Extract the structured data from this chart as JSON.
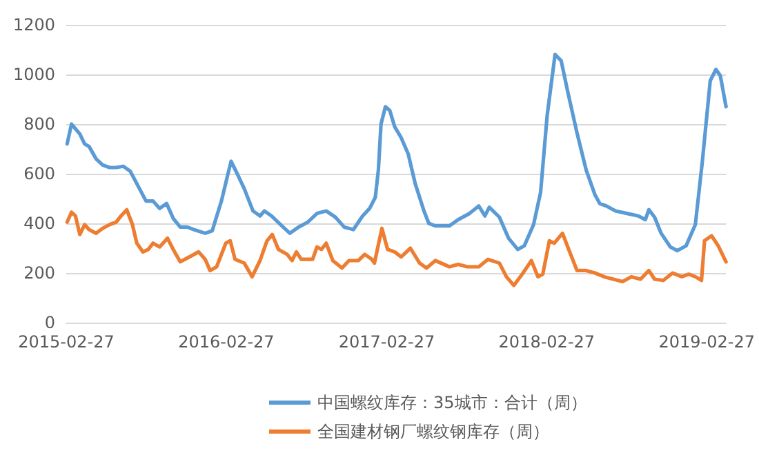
{
  "chart_data": {
    "type": "line",
    "xlim": [
      "2015-02-27",
      "2019-04-12"
    ],
    "xticks": [
      "2015-02-27",
      "2016-02-27",
      "2017-02-27",
      "2018-02-27",
      "2019-02-27"
    ],
    "ylim": [
      0,
      1200
    ],
    "yticks": [
      0,
      200,
      400,
      600,
      800,
      1000,
      1200
    ],
    "grid": "y",
    "legend": "bottom",
    "marker": "none",
    "line_style": "solid",
    "series": [
      {
        "name": "中国螺纹库存：35城市：合计（周）",
        "color": "#5b9bd5",
        "x": [
          "2015-03-01",
          "2015-03-11",
          "2015-03-30",
          "2015-04-10",
          "2015-04-20",
          "2015-05-06",
          "2015-05-21",
          "2015-06-06",
          "2015-06-21",
          "2015-07-07",
          "2015-07-23",
          "2015-08-07",
          "2015-08-28",
          "2015-09-13",
          "2015-09-28",
          "2015-10-14",
          "2015-10-29",
          "2015-11-14",
          "2015-11-30",
          "2015-12-15",
          "2016-01-10",
          "2016-01-26",
          "2016-02-16",
          "2016-03-02",
          "2016-03-09",
          "2016-03-23",
          "2016-04-08",
          "2016-04-28",
          "2016-05-14",
          "2016-05-24",
          "2016-06-09",
          "2016-06-30",
          "2016-07-21",
          "2016-08-10",
          "2016-08-31",
          "2016-09-21",
          "2016-10-12",
          "2016-11-02",
          "2016-11-22",
          "2016-12-13",
          "2017-01-03",
          "2017-01-19",
          "2017-02-01",
          "2017-02-08",
          "2017-02-14",
          "2017-02-24",
          "2017-03-06",
          "2017-03-17",
          "2017-04-01",
          "2017-04-17",
          "2017-05-03",
          "2017-05-23",
          "2017-06-03",
          "2017-06-18",
          "2017-07-20",
          "2017-08-09",
          "2017-09-04",
          "2017-09-25",
          "2017-10-09",
          "2017-10-19",
          "2017-11-11",
          "2017-12-02",
          "2017-12-23",
          "2018-01-07",
          "2018-01-28",
          "2018-02-13",
          "2018-02-28",
          "2018-03-18",
          "2018-04-01",
          "2018-04-16",
          "2018-05-07",
          "2018-05-28",
          "2018-06-17",
          "2018-06-28",
          "2018-07-13",
          "2018-08-03",
          "2018-08-29",
          "2018-09-24",
          "2018-10-10",
          "2018-10-18",
          "2018-10-31",
          "2018-11-15",
          "2018-12-06",
          "2018-12-22",
          "2019-01-11",
          "2019-02-01",
          "2019-02-17",
          "2019-03-07",
          "2019-03-20",
          "2019-03-30",
          "2019-04-12"
        ],
        "values": [
          720,
          800,
          760,
          720,
          710,
          660,
          635,
          625,
          625,
          630,
          610,
          560,
          490,
          490,
          460,
          480,
          420,
          385,
          385,
          375,
          360,
          370,
          490,
          600,
          650,
          600,
          540,
          450,
          430,
          450,
          430,
          395,
          360,
          385,
          405,
          440,
          450,
          425,
          385,
          375,
          430,
          460,
          505,
          615,
          800,
          870,
          855,
          790,
          745,
          680,
          560,
          450,
          400,
          390,
          390,
          415,
          440,
          470,
          430,
          465,
          425,
          340,
          295,
          310,
          395,
          525,
          835,
          1080,
          1055,
          930,
          765,
          615,
          515,
          480,
          470,
          450,
          440,
          430,
          415,
          455,
          425,
          360,
          305,
          290,
          310,
          395,
          650,
          975,
          1020,
          995,
          870
        ]
      },
      {
        "name": "全国建材钢厂螺纹钢库存（周）",
        "color": "#ed7d31",
        "x": [
          "2015-03-01",
          "2015-03-11",
          "2015-03-20",
          "2015-03-30",
          "2015-04-10",
          "2015-04-20",
          "2015-05-06",
          "2015-05-21",
          "2015-06-06",
          "2015-06-21",
          "2015-07-02",
          "2015-07-15",
          "2015-07-28",
          "2015-08-07",
          "2015-08-21",
          "2015-09-02",
          "2015-09-13",
          "2015-09-28",
          "2015-10-16",
          "2015-10-29",
          "2015-11-14",
          "2015-12-05",
          "2015-12-26",
          "2016-01-10",
          "2016-01-21",
          "2016-02-05",
          "2016-02-26",
          "2016-03-07",
          "2016-03-18",
          "2016-04-08",
          "2016-04-26",
          "2016-05-14",
          "2016-05-30",
          "2016-06-11",
          "2016-06-25",
          "2016-07-15",
          "2016-07-26",
          "2016-08-05",
          "2016-08-16",
          "2016-09-11",
          "2016-09-21",
          "2016-10-01",
          "2016-10-12",
          "2016-10-27",
          "2016-11-17",
          "2016-12-03",
          "2016-12-24",
          "2017-01-08",
          "2017-01-24",
          "2017-01-30",
          "2017-02-16",
          "2017-03-01",
          "2017-03-17",
          "2017-04-01",
          "2017-04-22",
          "2017-05-13",
          "2017-05-29",
          "2017-06-18",
          "2017-07-20",
          "2017-08-09",
          "2017-08-30",
          "2017-09-25",
          "2017-10-16",
          "2017-11-11",
          "2017-11-27",
          "2017-12-14",
          "2018-01-02",
          "2018-01-23",
          "2018-02-07",
          "2018-02-18",
          "2018-03-05",
          "2018-03-16",
          "2018-04-04",
          "2018-04-16",
          "2018-05-07",
          "2018-05-28",
          "2018-06-17",
          "2018-07-08",
          "2018-07-29",
          "2018-08-19",
          "2018-09-08",
          "2018-09-29",
          "2018-10-18",
          "2018-10-31",
          "2018-11-20",
          "2018-12-11",
          "2019-01-01",
          "2019-01-17",
          "2019-02-01",
          "2019-02-15",
          "2019-02-22",
          "2019-03-10",
          "2019-03-25",
          "2019-04-12"
        ],
        "values": [
          405,
          445,
          430,
          355,
          395,
          375,
          360,
          380,
          395,
          405,
          430,
          455,
          395,
          320,
          285,
          295,
          320,
          305,
          340,
          295,
          245,
          265,
          285,
          255,
          210,
          225,
          320,
          330,
          255,
          240,
          185,
          250,
          330,
          355,
          295,
          275,
          250,
          285,
          255,
          255,
          305,
          295,
          320,
          250,
          220,
          250,
          250,
          275,
          255,
          240,
          380,
          295,
          285,
          265,
          300,
          240,
          220,
          250,
          225,
          235,
          225,
          225,
          255,
          240,
          185,
          150,
          195,
          250,
          185,
          195,
          330,
          320,
          360,
          305,
          210,
          210,
          200,
          185,
          175,
          165,
          185,
          175,
          210,
          175,
          170,
          200,
          185,
          195,
          185,
          170,
          330,
          350,
          310,
          245
        ]
      }
    ]
  }
}
